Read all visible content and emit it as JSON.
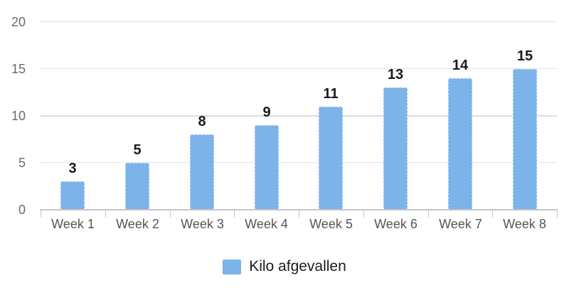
{
  "chart_data": {
    "type": "bar",
    "categories": [
      "Week 1",
      "Week 2",
      "Week 3",
      "Week 4",
      "Week 5",
      "Week 6",
      "Week 7",
      "Week 8"
    ],
    "values": [
      3,
      5,
      8,
      9,
      11,
      13,
      14,
      15
    ],
    "series": [
      {
        "name": "Kilo afgevallen",
        "values": [
          3,
          5,
          8,
          9,
          11,
          13,
          14,
          15
        ]
      }
    ],
    "value_labels": [
      "3",
      "5",
      "8",
      "9",
      "11",
      "13",
      "14",
      "15"
    ],
    "title": "",
    "xlabel": "",
    "ylabel": "",
    "ylim": [
      0,
      20
    ],
    "yticks": [
      0,
      5,
      10,
      15,
      20
    ],
    "grid": "on",
    "legend_position": "bottom"
  },
  "legend": {
    "label": "Kilo afgevallen"
  },
  "colors": {
    "bar_fill": "#7cb3e9",
    "bar_border": "#cfe3f7",
    "value_label": "#1a1a1a",
    "gridline": "#c7c7d2",
    "axis_line": "#c5c5cc",
    "x_label": "#555555",
    "y_label": "#6a6a6a",
    "background": "#ffffff"
  }
}
